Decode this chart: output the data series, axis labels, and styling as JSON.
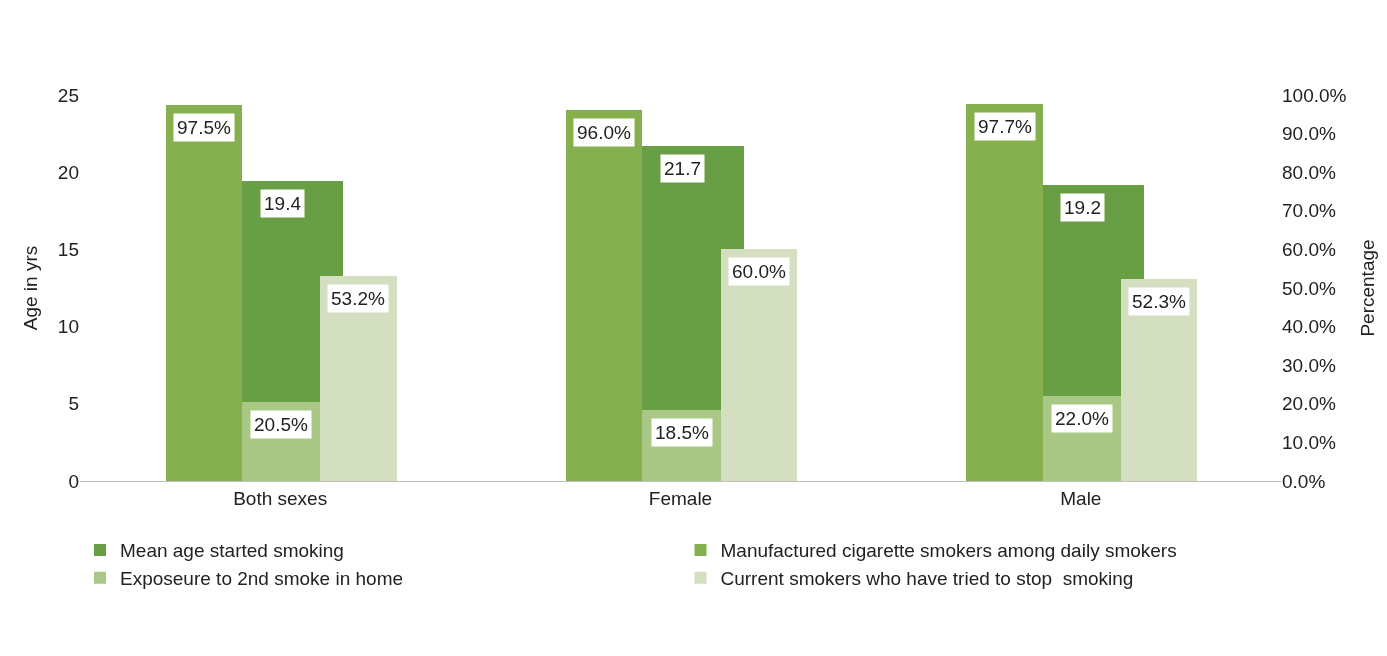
{
  "chart_data": {
    "type": "bar",
    "ylabel": "Age in yrs",
    "y2label": "Percentage",
    "categories": [
      "Both sexes",
      "Female",
      "Male"
    ],
    "series": [
      {
        "name": "Mean age started smoking",
        "color": "#689f45",
        "values": [
          19.4,
          21.7,
          19.2
        ]
      },
      {
        "name": "Manufactured cigarette smokers among daily smokers",
        "color": "#86b04e",
        "values": [
          97.5,
          96.0,
          97.7
        ],
        "axis": "y2"
      },
      {
        "name": "Exposeure to 2nd smoke in home",
        "color": "#a9c886",
        "values": [
          20.5,
          18.5,
          22.0
        ],
        "axis": "y2"
      },
      {
        "name": "Current smokers who have tried to stop  smoking",
        "color": "#d3dfc0",
        "values": [
          53.2,
          60.0,
          52.3
        ],
        "axis": "y2"
      }
    ],
    "ylim": [
      0,
      25
    ],
    "yticks": [
      0,
      5,
      10,
      15,
      20,
      25
    ],
    "y2lim": [
      0,
      100
    ],
    "y2ticks": [
      {
        "value": 0,
        "label": "0.0%"
      },
      {
        "value": 10,
        "label": "10.0%"
      },
      {
        "value": 20,
        "label": "20.0%"
      },
      {
        "value": 30,
        "label": "30.0%"
      },
      {
        "value": 40,
        "label": "40.0%"
      },
      {
        "value": 50,
        "label": "50.0%"
      },
      {
        "value": 60,
        "label": "60.0%"
      },
      {
        "value": 70,
        "label": "70.0%"
      },
      {
        "value": 80,
        "label": "80.0%"
      },
      {
        "value": 90,
        "label": "90.0%"
      },
      {
        "value": 100,
        "label": "100.0%"
      }
    ],
    "value_labels": [
      [
        "19.4",
        "21.7",
        "19.2"
      ],
      [
        "97.5%",
        "96.0%",
        "97.7%"
      ],
      [
        "20.5%",
        "18.5%",
        "22.0%"
      ],
      [
        "53.2%",
        "60.0%",
        "52.3%"
      ]
    ],
    "legend": "bottom"
  }
}
